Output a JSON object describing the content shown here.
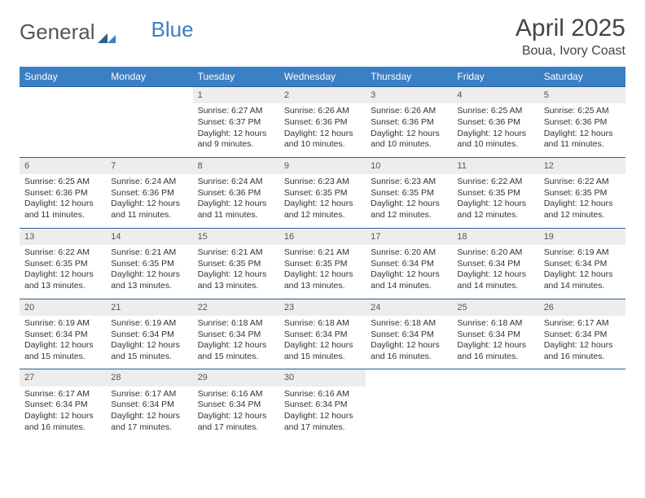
{
  "brand": {
    "part1": "General",
    "part2": "Blue"
  },
  "title": "April 2025",
  "location": "Boua, Ivory Coast",
  "colors": {
    "header_bg": "#3b7fc4",
    "header_text": "#ffffff",
    "daynum_bg": "#ededed",
    "rule": "#2e5e8f",
    "text": "#333333",
    "page_bg": "#ffffff"
  },
  "day_headers": [
    "Sunday",
    "Monday",
    "Tuesday",
    "Wednesday",
    "Thursday",
    "Friday",
    "Saturday"
  ],
  "weeks": [
    [
      null,
      null,
      {
        "n": "1",
        "sunrise": "Sunrise: 6:27 AM",
        "sunset": "Sunset: 6:37 PM",
        "day1": "Daylight: 12 hours",
        "day2": "and 9 minutes."
      },
      {
        "n": "2",
        "sunrise": "Sunrise: 6:26 AM",
        "sunset": "Sunset: 6:36 PM",
        "day1": "Daylight: 12 hours",
        "day2": "and 10 minutes."
      },
      {
        "n": "3",
        "sunrise": "Sunrise: 6:26 AM",
        "sunset": "Sunset: 6:36 PM",
        "day1": "Daylight: 12 hours",
        "day2": "and 10 minutes."
      },
      {
        "n": "4",
        "sunrise": "Sunrise: 6:25 AM",
        "sunset": "Sunset: 6:36 PM",
        "day1": "Daylight: 12 hours",
        "day2": "and 10 minutes."
      },
      {
        "n": "5",
        "sunrise": "Sunrise: 6:25 AM",
        "sunset": "Sunset: 6:36 PM",
        "day1": "Daylight: 12 hours",
        "day2": "and 11 minutes."
      }
    ],
    [
      {
        "n": "6",
        "sunrise": "Sunrise: 6:25 AM",
        "sunset": "Sunset: 6:36 PM",
        "day1": "Daylight: 12 hours",
        "day2": "and 11 minutes."
      },
      {
        "n": "7",
        "sunrise": "Sunrise: 6:24 AM",
        "sunset": "Sunset: 6:36 PM",
        "day1": "Daylight: 12 hours",
        "day2": "and 11 minutes."
      },
      {
        "n": "8",
        "sunrise": "Sunrise: 6:24 AM",
        "sunset": "Sunset: 6:36 PM",
        "day1": "Daylight: 12 hours",
        "day2": "and 11 minutes."
      },
      {
        "n": "9",
        "sunrise": "Sunrise: 6:23 AM",
        "sunset": "Sunset: 6:35 PM",
        "day1": "Daylight: 12 hours",
        "day2": "and 12 minutes."
      },
      {
        "n": "10",
        "sunrise": "Sunrise: 6:23 AM",
        "sunset": "Sunset: 6:35 PM",
        "day1": "Daylight: 12 hours",
        "day2": "and 12 minutes."
      },
      {
        "n": "11",
        "sunrise": "Sunrise: 6:22 AM",
        "sunset": "Sunset: 6:35 PM",
        "day1": "Daylight: 12 hours",
        "day2": "and 12 minutes."
      },
      {
        "n": "12",
        "sunrise": "Sunrise: 6:22 AM",
        "sunset": "Sunset: 6:35 PM",
        "day1": "Daylight: 12 hours",
        "day2": "and 12 minutes."
      }
    ],
    [
      {
        "n": "13",
        "sunrise": "Sunrise: 6:22 AM",
        "sunset": "Sunset: 6:35 PM",
        "day1": "Daylight: 12 hours",
        "day2": "and 13 minutes."
      },
      {
        "n": "14",
        "sunrise": "Sunrise: 6:21 AM",
        "sunset": "Sunset: 6:35 PM",
        "day1": "Daylight: 12 hours",
        "day2": "and 13 minutes."
      },
      {
        "n": "15",
        "sunrise": "Sunrise: 6:21 AM",
        "sunset": "Sunset: 6:35 PM",
        "day1": "Daylight: 12 hours",
        "day2": "and 13 minutes."
      },
      {
        "n": "16",
        "sunrise": "Sunrise: 6:21 AM",
        "sunset": "Sunset: 6:35 PM",
        "day1": "Daylight: 12 hours",
        "day2": "and 13 minutes."
      },
      {
        "n": "17",
        "sunrise": "Sunrise: 6:20 AM",
        "sunset": "Sunset: 6:34 PM",
        "day1": "Daylight: 12 hours",
        "day2": "and 14 minutes."
      },
      {
        "n": "18",
        "sunrise": "Sunrise: 6:20 AM",
        "sunset": "Sunset: 6:34 PM",
        "day1": "Daylight: 12 hours",
        "day2": "and 14 minutes."
      },
      {
        "n": "19",
        "sunrise": "Sunrise: 6:19 AM",
        "sunset": "Sunset: 6:34 PM",
        "day1": "Daylight: 12 hours",
        "day2": "and 14 minutes."
      }
    ],
    [
      {
        "n": "20",
        "sunrise": "Sunrise: 6:19 AM",
        "sunset": "Sunset: 6:34 PM",
        "day1": "Daylight: 12 hours",
        "day2": "and 15 minutes."
      },
      {
        "n": "21",
        "sunrise": "Sunrise: 6:19 AM",
        "sunset": "Sunset: 6:34 PM",
        "day1": "Daylight: 12 hours",
        "day2": "and 15 minutes."
      },
      {
        "n": "22",
        "sunrise": "Sunrise: 6:18 AM",
        "sunset": "Sunset: 6:34 PM",
        "day1": "Daylight: 12 hours",
        "day2": "and 15 minutes."
      },
      {
        "n": "23",
        "sunrise": "Sunrise: 6:18 AM",
        "sunset": "Sunset: 6:34 PM",
        "day1": "Daylight: 12 hours",
        "day2": "and 15 minutes."
      },
      {
        "n": "24",
        "sunrise": "Sunrise: 6:18 AM",
        "sunset": "Sunset: 6:34 PM",
        "day1": "Daylight: 12 hours",
        "day2": "and 16 minutes."
      },
      {
        "n": "25",
        "sunrise": "Sunrise: 6:18 AM",
        "sunset": "Sunset: 6:34 PM",
        "day1": "Daylight: 12 hours",
        "day2": "and 16 minutes."
      },
      {
        "n": "26",
        "sunrise": "Sunrise: 6:17 AM",
        "sunset": "Sunset: 6:34 PM",
        "day1": "Daylight: 12 hours",
        "day2": "and 16 minutes."
      }
    ],
    [
      {
        "n": "27",
        "sunrise": "Sunrise: 6:17 AM",
        "sunset": "Sunset: 6:34 PM",
        "day1": "Daylight: 12 hours",
        "day2": "and 16 minutes."
      },
      {
        "n": "28",
        "sunrise": "Sunrise: 6:17 AM",
        "sunset": "Sunset: 6:34 PM",
        "day1": "Daylight: 12 hours",
        "day2": "and 17 minutes."
      },
      {
        "n": "29",
        "sunrise": "Sunrise: 6:16 AM",
        "sunset": "Sunset: 6:34 PM",
        "day1": "Daylight: 12 hours",
        "day2": "and 17 minutes."
      },
      {
        "n": "30",
        "sunrise": "Sunrise: 6:16 AM",
        "sunset": "Sunset: 6:34 PM",
        "day1": "Daylight: 12 hours",
        "day2": "and 17 minutes."
      },
      null,
      null,
      null
    ]
  ]
}
